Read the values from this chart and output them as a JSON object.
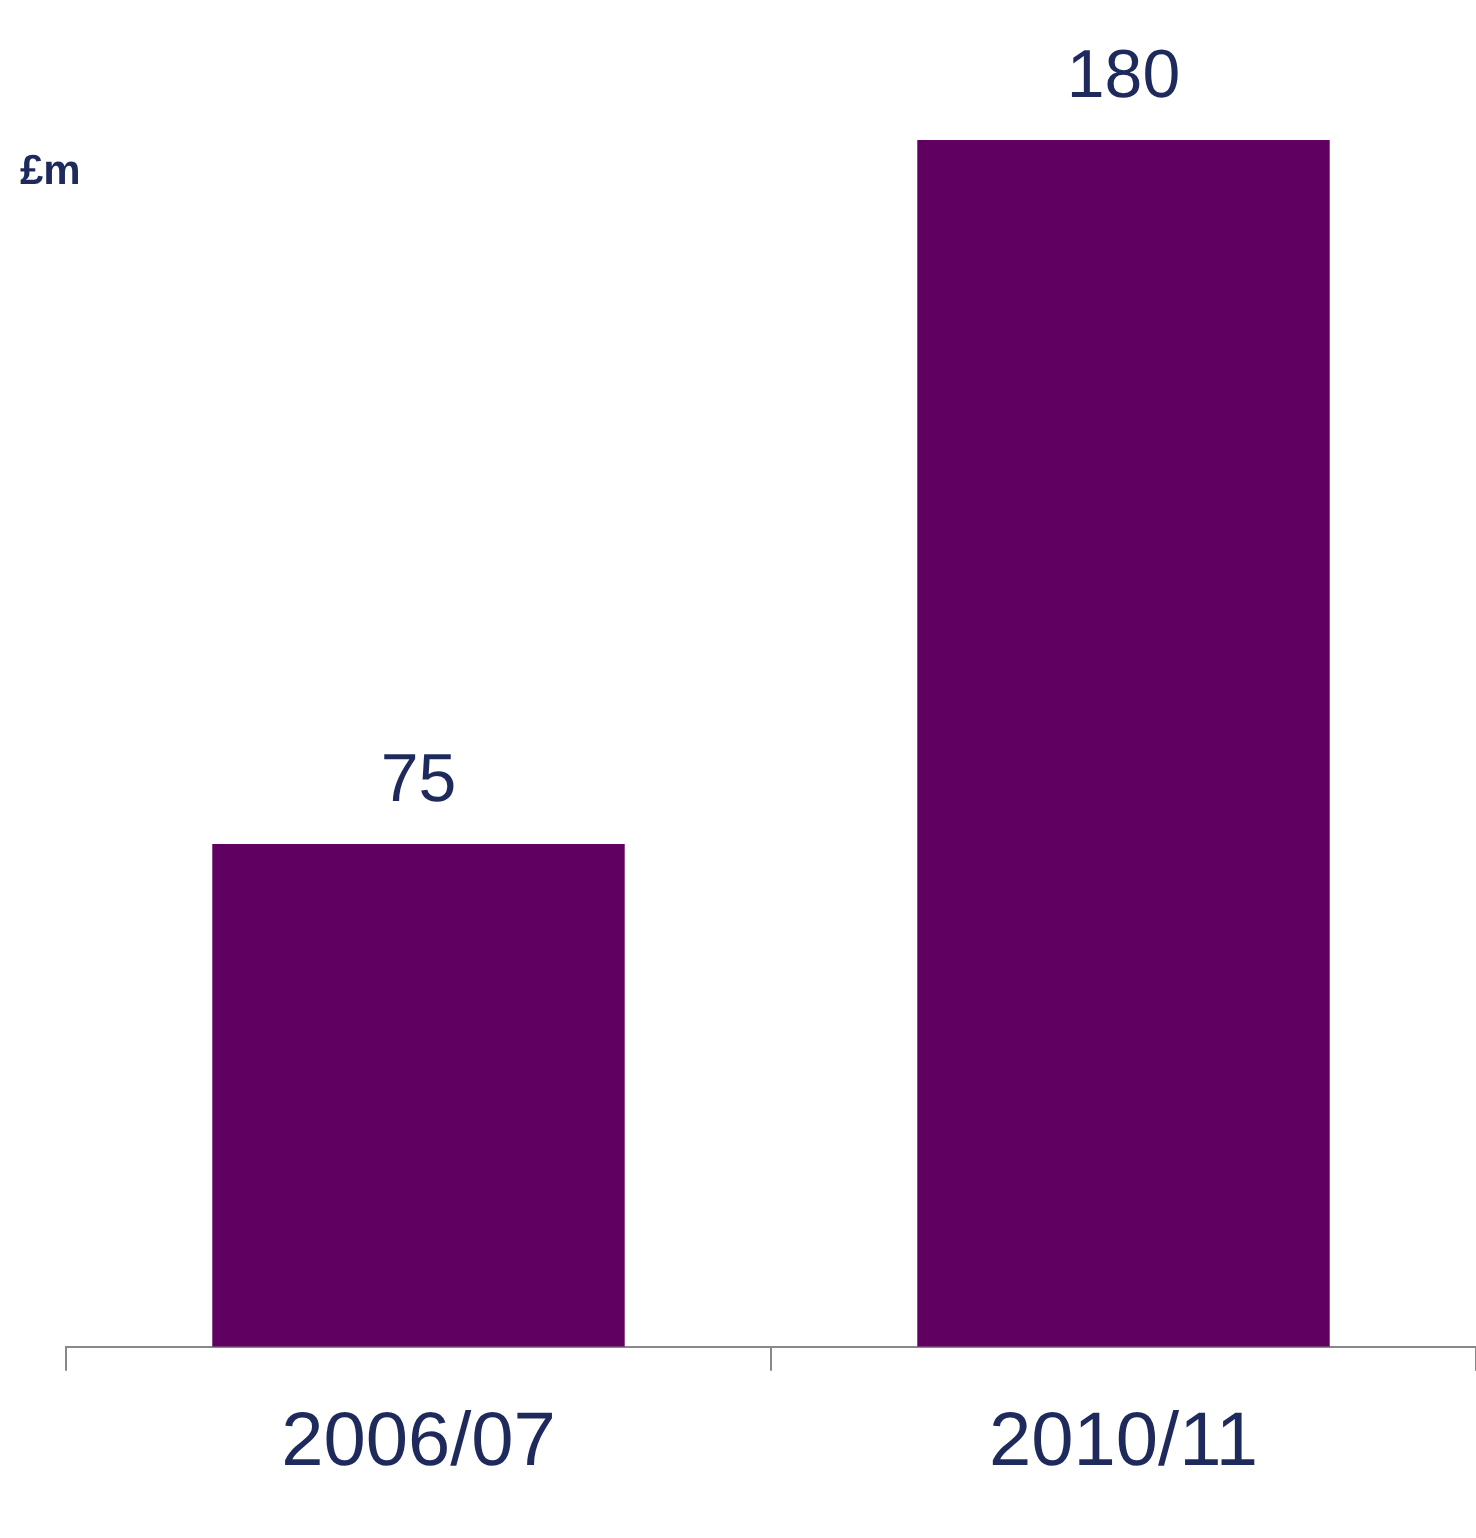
{
  "chart_data": {
    "type": "bar",
    "ylabel": "£m",
    "categories": [
      "2006/07",
      "2010/11"
    ],
    "values": [
      75,
      180
    ],
    "color": "#600060",
    "data_labels": true,
    "grid": false,
    "legend": false
  }
}
